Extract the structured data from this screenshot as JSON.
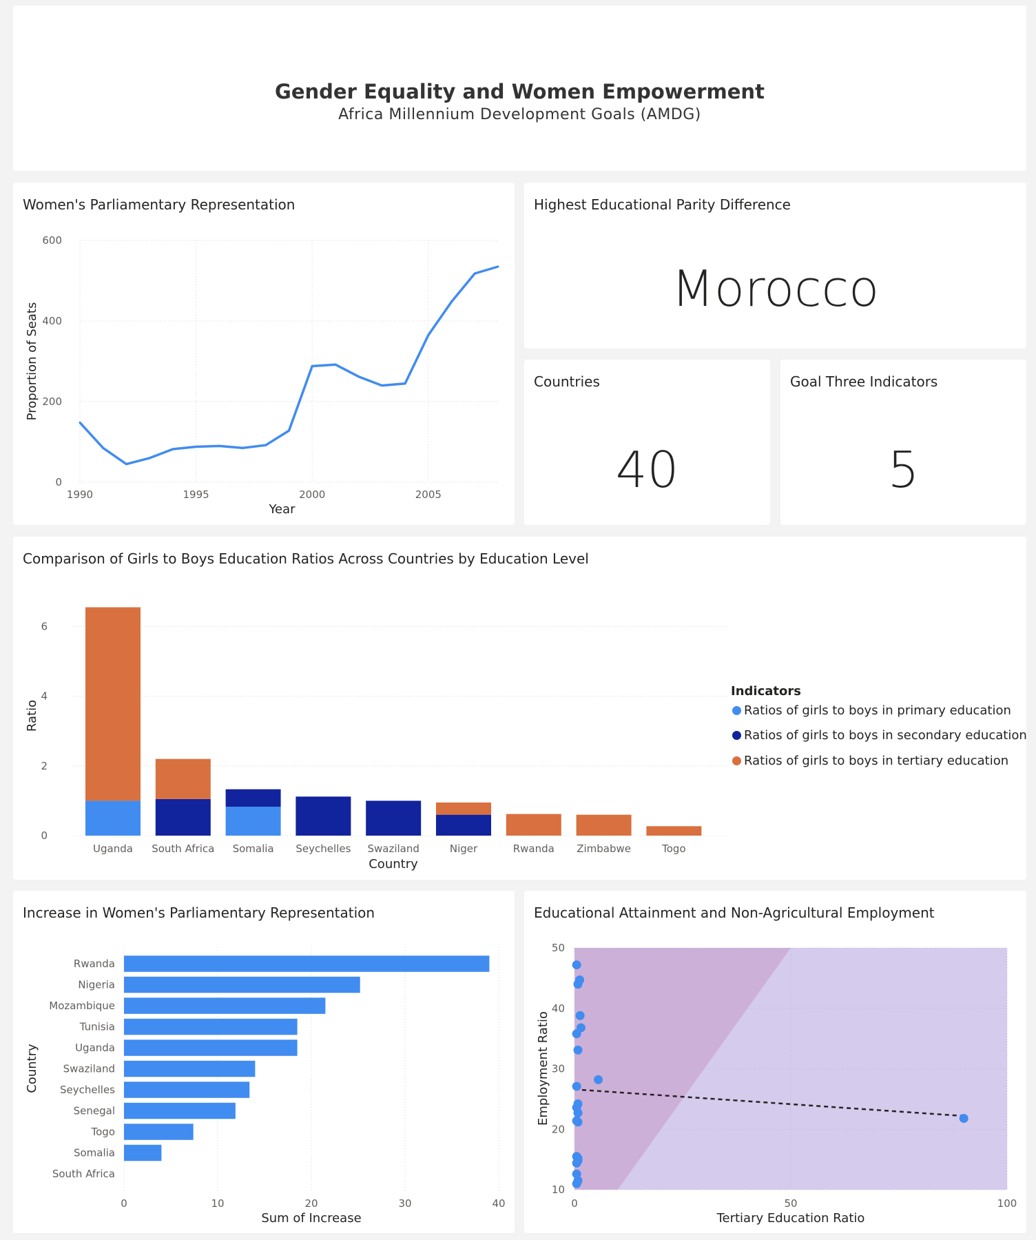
{
  "header": {
    "title": "Gender Equality and Women Empowerment",
    "subtitle": "Africa Millennium Development Goals (AMDG)"
  },
  "colors": {
    "primary": "#418cf0",
    "secondary": "#12239e",
    "tertiary": "#d9703f",
    "scatter_band_dark": "#cdb0d8",
    "scatter_band_light": "#d5cbec"
  },
  "cards": {
    "highest_parity": {
      "title": "Highest Educational Parity Difference",
      "value": "Morocco"
    },
    "countries": {
      "title": "Countries",
      "value": "40"
    },
    "goal_three": {
      "title": "Goal Three Indicators",
      "value": "5"
    }
  },
  "chart_data": [
    {
      "id": "parliament_line",
      "type": "line",
      "title": "Women's Parliamentary Representation",
      "xlabel": "Year",
      "ylabel": "Proportion of Seats",
      "x": [
        1990,
        1991,
        1992,
        1993,
        1994,
        1995,
        1996,
        1997,
        1998,
        1999,
        2000,
        2001,
        2002,
        2003,
        2004,
        2005,
        2006,
        2007,
        2008
      ],
      "y": [
        148,
        85,
        45,
        60,
        82,
        88,
        90,
        85,
        92,
        128,
        288,
        292,
        262,
        240,
        245,
        365,
        448,
        518,
        535
      ],
      "xlim": [
        1990,
        2008
      ],
      "ylim": [
        0,
        600
      ],
      "xticks": [
        1990,
        1995,
        2000,
        2005
      ],
      "yticks": [
        0,
        200,
        400,
        600
      ],
      "grid": true
    },
    {
      "id": "education_ratios",
      "type": "bar",
      "stacked": true,
      "title": "Comparison of Girls to Boys Education Ratios Across Countries by Education Level",
      "xlabel": "Country",
      "ylabel": "Ratio",
      "categories": [
        "Uganda",
        "South Africa",
        "Somalia",
        "Seychelles",
        "Swaziland",
        "Niger",
        "Rwanda",
        "Zimbabwe",
        "Togo"
      ],
      "series": [
        {
          "name": "Ratios of girls to boys in primary education",
          "values": [
            1.0,
            0,
            0.83,
            0,
            0,
            0,
            0,
            0,
            0
          ]
        },
        {
          "name": "Ratios of girls to boys in secondary education",
          "values": [
            0,
            1.05,
            0.5,
            1.12,
            1.0,
            0.6,
            0,
            0,
            0
          ]
        },
        {
          "name": "Ratios of girls to boys in tertiary education",
          "values": [
            5.55,
            1.15,
            0,
            0,
            0,
            0.35,
            0.62,
            0.6,
            0.27
          ]
        }
      ],
      "ylim": [
        0,
        6.6
      ],
      "yticks": [
        0,
        2,
        4,
        6
      ],
      "legend_title": "Indicators",
      "legend_position": "right",
      "grid": true
    },
    {
      "id": "increase_bar",
      "type": "bar",
      "orientation": "horizontal",
      "title": "Increase in Women's Parliamentary Representation",
      "xlabel": "Sum of Increase",
      "ylabel": "Country",
      "categories": [
        "Rwanda",
        "Nigeria",
        "Mozambique",
        "Tunisia",
        "Uganda",
        "Swaziland",
        "Seychelles",
        "Senegal",
        "Togo",
        "Somalia",
        "South Africa"
      ],
      "values": [
        39,
        25.2,
        21.5,
        18.5,
        18.5,
        14,
        13.4,
        11.9,
        7.4,
        4,
        0
      ],
      "xlim": [
        0,
        40
      ],
      "xticks": [
        0,
        10,
        20,
        30,
        40
      ],
      "grid": true
    },
    {
      "id": "attainment_scatter",
      "type": "scatter",
      "title": "Educational Attainment and Non-Agricultural Employment",
      "xlabel": "Tertiary Education Ratio",
      "ylabel": "Employment Ratio",
      "xlim": [
        0,
        100
      ],
      "ylim": [
        10,
        50
      ],
      "xticks": [
        0,
        50,
        100
      ],
      "yticks": [
        10,
        20,
        30,
        40,
        50
      ],
      "points": [
        [
          0.5,
          47.2
        ],
        [
          0.8,
          44
        ],
        [
          1.2,
          44.7
        ],
        [
          1.3,
          38.8
        ],
        [
          1.5,
          36.8
        ],
        [
          0.5,
          35.8
        ],
        [
          0.8,
          33.1
        ],
        [
          0.5,
          27.1
        ],
        [
          5.5,
          28.2
        ],
        [
          0.8,
          24.2
        ],
        [
          0.5,
          23.6
        ],
        [
          0.8,
          22.7
        ],
        [
          0.5,
          21.4
        ],
        [
          0.8,
          21.2
        ],
        [
          0.5,
          15.5
        ],
        [
          0.8,
          15.2
        ],
        [
          0.5,
          14.4
        ],
        [
          0.8,
          14.8
        ],
        [
          0.5,
          12.6
        ],
        [
          0.8,
          11.5
        ],
        [
          0.5,
          11.0
        ],
        [
          90,
          21.8
        ]
      ],
      "trend_line": {
        "x": [
          0,
          90
        ],
        "y": [
          26.6,
          22.2
        ]
      },
      "grid": true
    }
  ]
}
